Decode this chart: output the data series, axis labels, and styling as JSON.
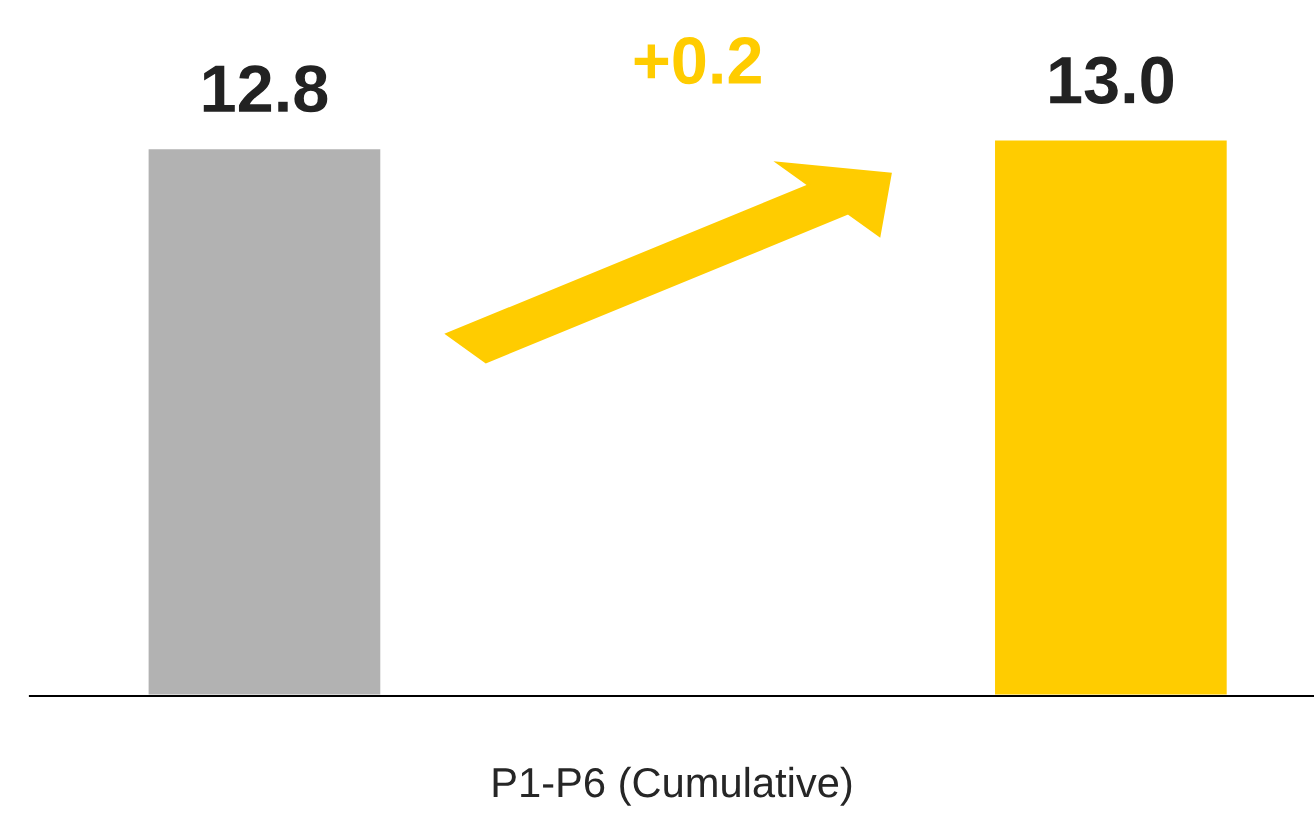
{
  "chart_data": {
    "type": "bar",
    "xlabel": "P1-P6 (Cumulative)",
    "categories": [
      null,
      null
    ],
    "values": [
      12.8,
      13.0
    ],
    "value_labels": [
      "12.8",
      "13.0"
    ],
    "colors": [
      "#b2b2b2",
      "#ffcc00"
    ],
    "annotations": [
      "+0.2"
    ]
  }
}
